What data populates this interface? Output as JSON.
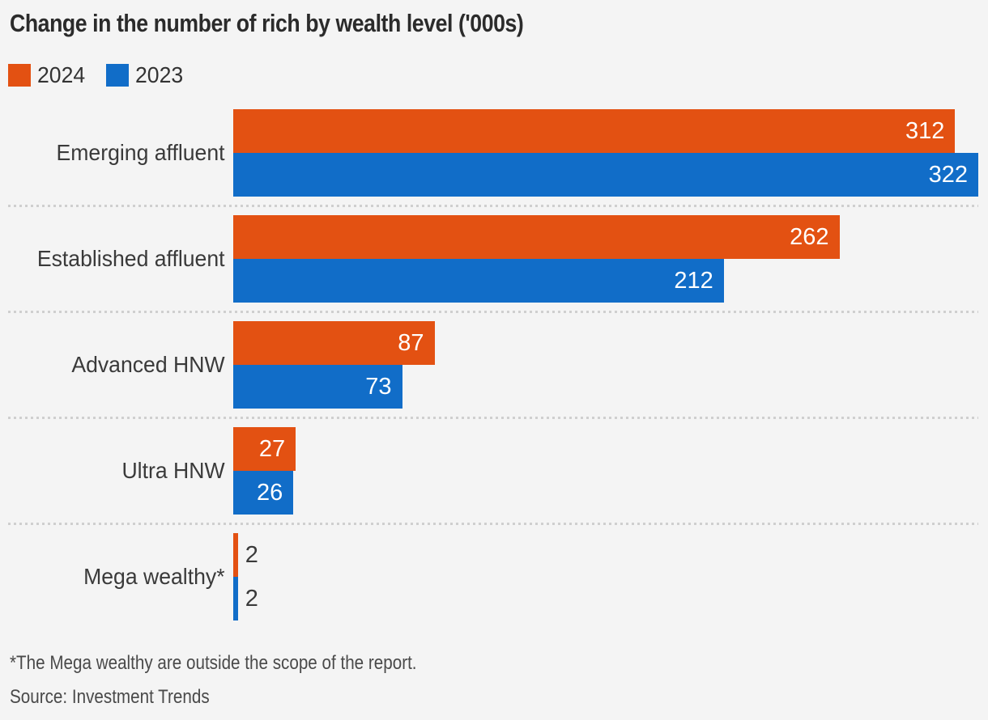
{
  "title": "Change in the number of rich by wealth level ('000s)",
  "footnote": "*The Mega wealthy are outside the scope of the report.",
  "source": "Source: Investment Trends",
  "colors": {
    "background": "#f4f4f4",
    "orange_2024": "#e35112",
    "blue_2023": "#116dc8",
    "title_text": "#2b2b2b",
    "label_text": "#3a3a3a",
    "value_text_inside": "#ffffff",
    "divider": "#cfcfcf"
  },
  "chart_data": {
    "type": "bar",
    "orientation": "horizontal",
    "title": "Change in the number of rich by wealth level ('000s)",
    "categories": [
      "Emerging affluent",
      "Established affluent",
      "Advanced HNW",
      "Ultra HNW",
      "Mega wealthy*"
    ],
    "series": [
      {
        "name": "2024",
        "color": "#e35112",
        "values": [
          312,
          262,
          87,
          27,
          2
        ]
      },
      {
        "name": "2023",
        "color": "#116dc8",
        "values": [
          322,
          212,
          73,
          26,
          2
        ]
      }
    ],
    "xlim": [
      0,
      322
    ],
    "value_labels": true,
    "grid": false,
    "legend_position": "top-left",
    "row_dividers": "dotted"
  }
}
